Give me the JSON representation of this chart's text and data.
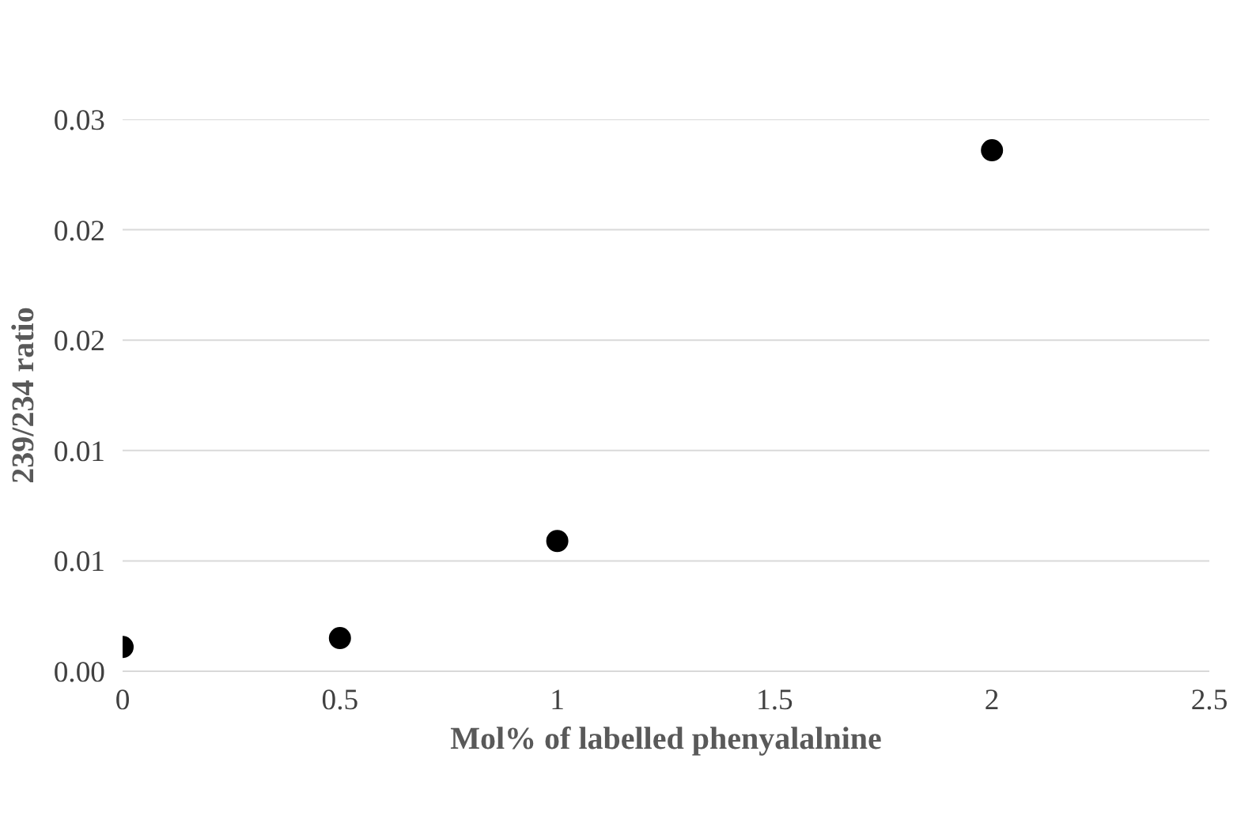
{
  "chart_data": {
    "type": "scatter",
    "xlabel": "Mol% of labelled phenyalalnine",
    "ylabel": "239/234 ratio",
    "x": [
      0,
      0.5,
      1,
      2
    ],
    "series": [
      {
        "color": "#000000",
        "values": [
          0.0011,
          0.0015,
          0.0059,
          0.0236
        ]
      }
    ],
    "xlim": [
      0,
      2.5
    ],
    "xticks": [
      0,
      0.5,
      1,
      1.5,
      2,
      2.5
    ],
    "ylim": [
      0,
      0.025
    ],
    "yticks": [
      {
        "value": 0,
        "label": "0.00"
      },
      {
        "value": 0.005,
        "label": "0.01"
      },
      {
        "value": 0.01,
        "label": "0.01"
      },
      {
        "value": 0.015,
        "label": "0.02"
      },
      {
        "value": 0.02,
        "label": "0.02"
      },
      {
        "value": 0.025,
        "label": "0.03"
      }
    ],
    "grid": "y",
    "marker": "circle"
  }
}
